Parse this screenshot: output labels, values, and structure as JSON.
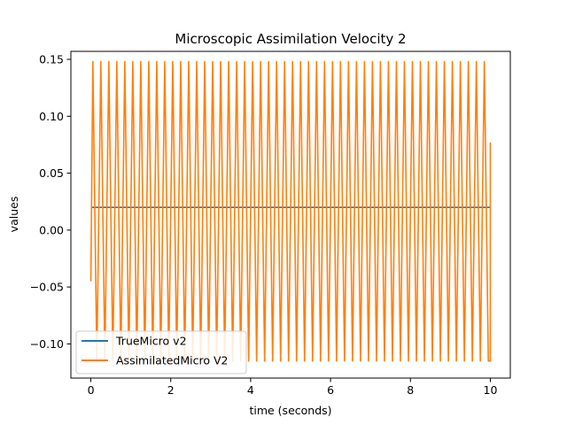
{
  "chart_data": {
    "type": "line",
    "title": "Microscopic Assimilation Velocity 2",
    "xlabel": "time (seconds)",
    "ylabel": "values",
    "xlim": [
      -0.5,
      10.5
    ],
    "ylim": [
      -0.13,
      0.157
    ],
    "x_ticks": [
      0,
      2,
      4,
      6,
      8,
      10
    ],
    "x_tick_labels": [
      "0",
      "2",
      "4",
      "6",
      "8",
      "10"
    ],
    "y_ticks": [
      -0.1,
      -0.05,
      0.0,
      0.05,
      0.1,
      0.15
    ],
    "y_tick_labels": [
      "−0.10",
      "−0.05",
      "0.00",
      "0.05",
      "0.10",
      "0.15"
    ],
    "grid": false,
    "legend_position": "lower-left",
    "series": [
      {
        "name": "TrueMicro v2",
        "color": "#1f77b4",
        "kind": "constant",
        "x_range": [
          0,
          10
        ],
        "value": 0.02
      },
      {
        "name": "AssimilatedMicro V2",
        "color": "#ff7f0e",
        "kind": "oscillation",
        "x_range": [
          0,
          10
        ],
        "start_value": -0.045,
        "end_value": 0.077,
        "max": 0.148,
        "min": -0.115,
        "cycles": 50
      }
    ]
  }
}
